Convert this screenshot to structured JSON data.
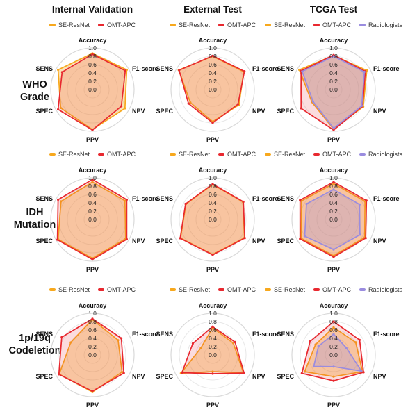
{
  "figure": {
    "columns": [
      {
        "title": "Internal Validation"
      },
      {
        "title": "External Test"
      },
      {
        "title": "TCGA Test"
      }
    ],
    "rows": [
      {
        "label_lines": [
          "WHO",
          "Grade"
        ]
      },
      {
        "label_lines": [
          "IDH",
          "Mutation"
        ]
      },
      {
        "label_lines": [
          "1p/19q",
          "Codeletion"
        ]
      }
    ],
    "series_colors": {
      "SE-ResNet": "#F7A81D",
      "OMT-APC": "#E8282F",
      "Radiologists": "#9A8CDF"
    },
    "grid_color_outer": "#d9d9d9",
    "grid_color_inner": "#e7e7e7"
  },
  "chart_data": [
    {
      "type": "radar",
      "row": "WHO Grade",
      "column": "Internal Validation",
      "axes": [
        "Accuracy",
        "F1-score",
        "NPV",
        "PPV",
        "SPEC",
        "SENS"
      ],
      "tick_labels": [
        "1.0",
        "0.8",
        "0.6",
        "0.4",
        "0.2",
        "0.0"
      ],
      "range": [
        0,
        1
      ],
      "legend_position": "top",
      "grid": "circular",
      "series": [
        {
          "name": "SE-ResNet",
          "values": [
            0.87,
            0.95,
            0.9,
            0.96,
            0.88,
            0.95
          ]
        },
        {
          "name": "OMT-APC",
          "values": [
            0.85,
            0.91,
            0.8,
            0.97,
            0.95,
            0.84
          ]
        }
      ]
    },
    {
      "type": "radar",
      "row": "WHO Grade",
      "column": "External Test",
      "axes": [
        "Accuracy",
        "F1-score",
        "NPV",
        "PPV",
        "SPEC",
        "SENS"
      ],
      "tick_labels": [
        "1.0",
        "0.8",
        "0.6",
        "0.4",
        "0.2",
        "0.0"
      ],
      "range": [
        0,
        1
      ],
      "legend_position": "top",
      "grid": "circular",
      "series": [
        {
          "name": "SE-ResNet",
          "values": [
            0.8,
            0.86,
            0.73,
            0.77,
            0.62,
            0.94
          ]
        },
        {
          "name": "OMT-APC",
          "values": [
            0.81,
            0.88,
            0.7,
            0.8,
            0.67,
            0.93
          ]
        }
      ]
    },
    {
      "type": "radar",
      "row": "WHO Grade",
      "column": "TCGA Test",
      "axes": [
        "Accuracy",
        "F1-score",
        "NPV",
        "PPV",
        "SPEC",
        "SENS"
      ],
      "tick_labels": [
        "1.0",
        "0.8",
        "0.6",
        "0.4",
        "0.2",
        "0.0"
      ],
      "range": [
        0,
        1
      ],
      "legend_position": "top",
      "grid": "circular",
      "series": [
        {
          "name": "SE-ResNet",
          "values": [
            0.82,
            0.92,
            0.82,
            0.95,
            0.6,
            0.95
          ]
        },
        {
          "name": "OMT-APC",
          "values": [
            0.83,
            0.88,
            0.8,
            0.97,
            0.9,
            0.9
          ]
        },
        {
          "name": "Radiologists",
          "values": [
            0.8,
            0.85,
            0.78,
            0.93,
            0.57,
            0.87
          ]
        }
      ]
    },
    {
      "type": "radar",
      "row": "IDH Mutation",
      "column": "Internal Validation",
      "axes": [
        "Accuracy",
        "F1-score",
        "NPV",
        "PPV",
        "SPEC",
        "SENS"
      ],
      "tick_labels": [
        "1.0",
        "0.8",
        "0.6",
        "0.4",
        "0.2",
        "0.0"
      ],
      "range": [
        0,
        1
      ],
      "legend_position": "top",
      "grid": "circular",
      "series": [
        {
          "name": "SE-ResNet",
          "values": [
            0.9,
            0.9,
            0.92,
            0.93,
            0.95,
            0.87
          ]
        },
        {
          "name": "OMT-APC",
          "values": [
            0.96,
            0.95,
            0.95,
            0.96,
            0.97,
            0.95
          ]
        }
      ]
    },
    {
      "type": "radar",
      "row": "IDH Mutation",
      "column": "External Test",
      "axes": [
        "Accuracy",
        "F1-score",
        "NPV",
        "PPV",
        "SPEC",
        "SENS"
      ],
      "tick_labels": [
        "1.0",
        "0.8",
        "0.6",
        "0.4",
        "0.2",
        "0.0"
      ],
      "range": [
        0,
        1
      ],
      "legend_position": "top",
      "grid": "circular",
      "series": [
        {
          "name": "SE-ResNet",
          "values": [
            0.84,
            0.84,
            0.88,
            0.84,
            0.89,
            0.74
          ]
        },
        {
          "name": "OMT-APC",
          "values": [
            0.85,
            0.85,
            0.89,
            0.85,
            0.9,
            0.75
          ]
        }
      ]
    },
    {
      "type": "radar",
      "row": "IDH Mutation",
      "column": "TCGA Test",
      "axes": [
        "Accuracy",
        "F1-score",
        "NPV",
        "PPV",
        "SPEC",
        "SENS"
      ],
      "tick_labels": [
        "1.0",
        "0.8",
        "0.6",
        "0.4",
        "0.2",
        "0.0"
      ],
      "range": [
        0,
        1
      ],
      "legend_position": "top",
      "grid": "circular",
      "series": [
        {
          "name": "SE-ResNet",
          "values": [
            0.86,
            0.87,
            0.86,
            0.87,
            0.9,
            0.89
          ]
        },
        {
          "name": "OMT-APC",
          "values": [
            0.9,
            0.91,
            0.89,
            0.9,
            0.93,
            0.93
          ]
        },
        {
          "name": "Radiologists",
          "values": [
            0.72,
            0.72,
            0.73,
            0.72,
            0.8,
            0.75
          ]
        }
      ]
    },
    {
      "type": "radar",
      "row": "1p/19q Codeletion",
      "column": "Internal Validation",
      "axes": [
        "Accuracy",
        "F1-score",
        "NPV",
        "PPV",
        "SPEC",
        "SENS"
      ],
      "tick_labels": [
        "1.0",
        "0.8",
        "0.6",
        "0.4",
        "0.2",
        "0.0"
      ],
      "range": [
        0,
        1
      ],
      "legend_position": "top",
      "grid": "circular",
      "series": [
        {
          "name": "SE-ResNet",
          "values": [
            0.85,
            0.71,
            0.82,
            0.89,
            0.92,
            0.6
          ]
        },
        {
          "name": "OMT-APC",
          "values": [
            0.87,
            0.8,
            0.87,
            0.87,
            0.93,
            0.85
          ]
        }
      ]
    },
    {
      "type": "radar",
      "row": "1p/19q Codeletion",
      "column": "External Test",
      "axes": [
        "Accuracy",
        "F1-score",
        "NPV",
        "PPV",
        "SPEC",
        "SENS"
      ],
      "tick_labels": [
        "1.0",
        "0.8",
        "0.6",
        "0.4",
        "0.2",
        "0.0"
      ],
      "range": [
        0,
        1
      ],
      "legend_position": "top",
      "grid": "circular",
      "series": [
        {
          "name": "SE-ResNet",
          "values": [
            0.65,
            0.57,
            0.85,
            0.4,
            0.88,
            0.33
          ]
        },
        {
          "name": "OMT-APC",
          "values": [
            0.68,
            0.62,
            0.87,
            0.45,
            0.85,
            0.55
          ]
        }
      ]
    },
    {
      "type": "radar",
      "row": "1p/19q Codeletion",
      "column": "TCGA Test",
      "axes": [
        "Accuracy",
        "F1-score",
        "NPV",
        "PPV",
        "SPEC",
        "SENS"
      ],
      "tick_labels": [
        "1.0",
        "0.8",
        "0.6",
        "0.4",
        "0.2",
        "0.0"
      ],
      "range": [
        0,
        1
      ],
      "legend_position": "top",
      "grid": "circular",
      "series": [
        {
          "name": "SE-ResNet",
          "values": [
            0.66,
            0.61,
            0.8,
            0.52,
            0.8,
            0.5
          ]
        },
        {
          "name": "OMT-APC",
          "values": [
            0.8,
            0.72,
            0.83,
            0.62,
            0.88,
            0.65
          ]
        },
        {
          "name": "Radiologists",
          "values": [
            0.5,
            0.35,
            0.77,
            0.28,
            0.55,
            0.42
          ]
        }
      ]
    }
  ]
}
